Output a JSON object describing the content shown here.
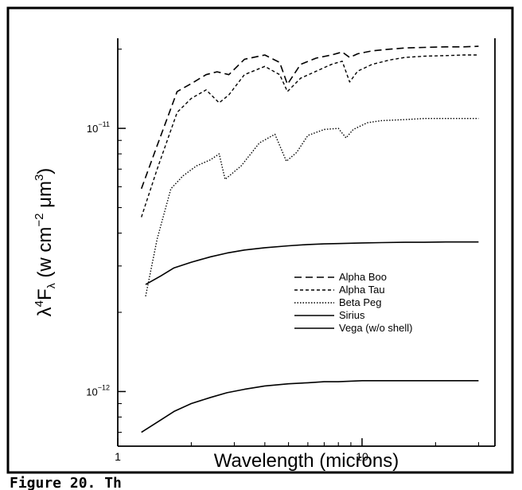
{
  "chart_data": {
    "type": "line",
    "xlabel": "Wavelength (microns)",
    "ylabel_parts": {
      "lambda": "λ",
      "power4": "4",
      "F": "F",
      "sub": "λ",
      "units_open": " (w cm",
      "exp_m2": "−2",
      "mid": "  μm",
      "exp3": "3",
      "close": ")"
    },
    "xscale": "log",
    "yscale": "log",
    "xlim": [
      1.0,
      35.0
    ],
    "ylim": [
      6.2e-13,
      2.2e-11
    ],
    "x_ticks": [
      {
        "value": 1,
        "label": "1"
      },
      {
        "value": 10,
        "label": "10"
      }
    ],
    "y_ticks": [
      {
        "value": 1e-11,
        "base": "10",
        "exp": "−11"
      },
      {
        "value": 1e-12,
        "base": "10",
        "exp": "−12"
      }
    ],
    "legend_position": "right",
    "series": [
      {
        "name": "Alpha Boo",
        "dash": "9,5",
        "width": 1.6,
        "x": [
          1.25,
          1.45,
          1.75,
          2.0,
          2.3,
          2.55,
          2.85,
          3.3,
          4.0,
          4.6,
          4.95,
          5.6,
          6.5,
          7.5,
          8.3,
          8.9,
          9.6,
          11,
          13,
          15,
          18,
          22,
          26,
          30
        ],
        "y": [
          5.9e-12,
          8.6e-12,
          1.38e-11,
          1.48e-11,
          1.6e-11,
          1.64e-11,
          1.6e-11,
          1.83e-11,
          1.9e-11,
          1.78e-11,
          1.47e-11,
          1.75e-11,
          1.85e-11,
          1.9e-11,
          1.95e-11,
          1.86e-11,
          1.92e-11,
          1.97e-11,
          2e-11,
          2.02e-11,
          2.03e-11,
          2.04e-11,
          2.04e-11,
          2.05e-11
        ]
      },
      {
        "name": "Alpha Tau",
        "dash": "4,3",
        "width": 1.4,
        "x": [
          1.25,
          1.45,
          1.75,
          2.0,
          2.3,
          2.6,
          2.85,
          3.3,
          4.0,
          4.6,
          4.95,
          5.6,
          6.5,
          7.5,
          8.3,
          8.9,
          9.6,
          11,
          13,
          15,
          18,
          22,
          26,
          30
        ],
        "y": [
          4.6e-12,
          7e-12,
          1.15e-11,
          1.3e-11,
          1.4e-11,
          1.25e-11,
          1.34e-11,
          1.6e-11,
          1.72e-11,
          1.6e-11,
          1.38e-11,
          1.55e-11,
          1.65e-11,
          1.75e-11,
          1.8e-11,
          1.5e-11,
          1.65e-11,
          1.75e-11,
          1.82e-11,
          1.86e-11,
          1.88e-11,
          1.89e-11,
          1.9e-11,
          1.9e-11
        ]
      },
      {
        "name": "Beta Peg",
        "dash": "1.5,2",
        "width": 1.4,
        "x": [
          1.3,
          1.45,
          1.65,
          1.85,
          2.1,
          2.4,
          2.6,
          2.75,
          3.2,
          3.8,
          4.4,
          4.9,
          5.4,
          6.0,
          7.0,
          8.0,
          8.6,
          9.2,
          10.5,
          12,
          15,
          18,
          22,
          26,
          30
        ],
        "y": [
          2.3e-12,
          3.8e-12,
          5.9e-12,
          6.6e-12,
          7.2e-12,
          7.6e-12,
          8e-12,
          6.4e-12,
          7.2e-12,
          8.8e-12,
          9.5e-12,
          7.5e-12,
          8.1e-12,
          9.4e-12,
          9.9e-12,
          1e-11,
          9.2e-12,
          9.9e-12,
          1.05e-11,
          1.07e-11,
          1.08e-11,
          1.09e-11,
          1.09e-11,
          1.09e-11,
          1.09e-11
        ]
      },
      {
        "name": "Sirius",
        "dash": "",
        "width": 1.6,
        "x": [
          1.3,
          1.5,
          1.7,
          2.0,
          2.4,
          2.8,
          3.3,
          4.0,
          5.0,
          6.0,
          7.0,
          8.0,
          10.0,
          12.0,
          15.0,
          18.0,
          22.0,
          26.0,
          30.0
        ],
        "y": [
          2.55e-12,
          2.75e-12,
          2.95e-12,
          3.1e-12,
          3.25e-12,
          3.36e-12,
          3.45e-12,
          3.52e-12,
          3.58e-12,
          3.62e-12,
          3.64e-12,
          3.65e-12,
          3.67e-12,
          3.68e-12,
          3.69e-12,
          3.69e-12,
          3.7e-12,
          3.7e-12,
          3.7e-12
        ]
      },
      {
        "name": "Vega (w/o shell)",
        "dash": "",
        "width": 1.6,
        "x": [
          1.25,
          1.5,
          1.7,
          2.0,
          2.4,
          2.8,
          3.3,
          4.0,
          5.0,
          6.0,
          7.0,
          8.0,
          10.0,
          12.0,
          15.0,
          18.0,
          22.0,
          26.0,
          30.0
        ],
        "y": [
          7e-13,
          7.8e-13,
          8.4e-13,
          9e-13,
          9.5e-13,
          9.9e-13,
          1.02e-12,
          1.05e-12,
          1.07e-12,
          1.08e-12,
          1.09e-12,
          1.09e-12,
          1.1e-12,
          1.1e-12,
          1.1e-12,
          1.1e-12,
          1.1e-12,
          1.1e-12,
          1.1e-12
        ]
      }
    ]
  },
  "caption_fragment": "Figure 20.  Th"
}
